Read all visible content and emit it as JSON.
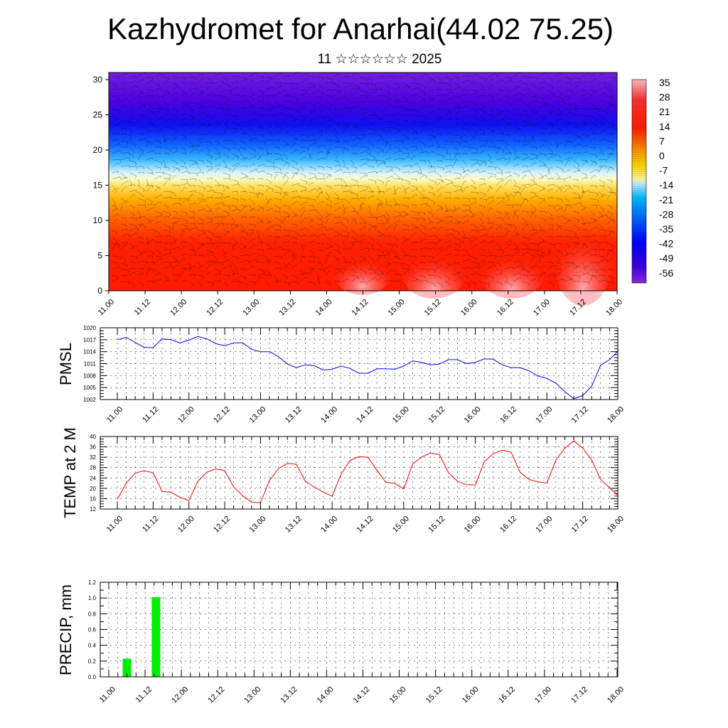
{
  "header": {
    "title": "Kazhydromet for Anarhai(44.02 75.25)",
    "subtitle": "11 ☆☆☆☆☆☆ 2025"
  },
  "colors": {
    "pmsl_line": "#0000ff",
    "temp_line": "#ff0000",
    "precip_bar": "#00ee00",
    "colorbar_stops": [
      "#ffd0e0",
      "#ff5050",
      "#ff0000",
      "#ff8c00",
      "#ffd700",
      "#fff8a0",
      "#c8f0ff",
      "#00bfff",
      "#0070ff",
      "#0000ff",
      "#4000e0",
      "#9020e0"
    ]
  },
  "chart_data": [
    {
      "type": "heatmap",
      "name": "temperature-height-section",
      "x_ticks": [
        "11.00",
        "11.12",
        "12.00",
        "12.12",
        "13.00",
        "13.12",
        "14.00",
        "14.12",
        "15.00",
        "15.12",
        "16.00",
        "16.12",
        "17.00",
        "17.12",
        "18.00"
      ],
      "y_ticks": [
        "0",
        "5",
        "10",
        "15",
        "20",
        "25",
        "30"
      ],
      "ylim": [
        0,
        31
      ],
      "colorbar_labels": [
        "35",
        "28",
        "21",
        "14",
        "7",
        "0",
        "-7",
        "-14",
        "-21",
        "-28",
        "-35",
        "-42",
        "-49",
        "-56"
      ],
      "wind_barbs": true
    },
    {
      "type": "line",
      "name": "pmsl",
      "ylabel": "PMSL",
      "ylim": [
        1002,
        1020
      ],
      "y_ticks": [
        "1020",
        "1017",
        "1014",
        "1011",
        "1008",
        "1005",
        "1002"
      ],
      "x_ticks": [
        "11.00",
        "11.12",
        "12.00",
        "12.12",
        "13.00",
        "13.12",
        "14.00",
        "14.12",
        "15.00",
        "15.12",
        "16.00",
        "16.12",
        "17.00",
        "17.12",
        "18.00"
      ],
      "grid": true,
      "values": [
        1017.0,
        1017.6,
        1016.3,
        1015.1,
        1015.0,
        1017.2,
        1017.0,
        1016.2,
        1016.9,
        1017.8,
        1017.2,
        1016.0,
        1015.5,
        1016.2,
        1016.2,
        1014.6,
        1014.0,
        1014.0,
        1012.8,
        1010.9,
        1010.0,
        1010.7,
        1010.5,
        1009.4,
        1009.6,
        1010.4,
        1009.8,
        1008.6,
        1008.6,
        1009.7,
        1009.7,
        1009.6,
        1010.4,
        1011.7,
        1011.3,
        1010.7,
        1010.9,
        1012.0,
        1012.0,
        1011.0,
        1011.3,
        1012.2,
        1012.1,
        1010.7,
        1010.0,
        1010.0,
        1009.2,
        1007.9,
        1007.3,
        1006.1,
        1004.0,
        1002.2,
        1003.0,
        1005.3,
        1010.6,
        1012.0,
        1014.3
      ]
    },
    {
      "type": "line",
      "name": "temp-2m",
      "ylabel": "TEMP at 2 M",
      "ylim": [
        12,
        40
      ],
      "y_ticks": [
        "40",
        "36",
        "32",
        "28",
        "24",
        "20",
        "16",
        "12"
      ],
      "x_ticks": [
        "11.00",
        "11.12",
        "12.00",
        "12.12",
        "13.00",
        "13.12",
        "14.00",
        "14.12",
        "15.00",
        "15.12",
        "16.00",
        "16.12",
        "17.00",
        "17.12",
        "18.00"
      ],
      "grid": true,
      "values": [
        15.7,
        22.0,
        25.9,
        26.8,
        26.0,
        18.8,
        18.5,
        16.5,
        15.3,
        22.8,
        26.2,
        27.5,
        26.8,
        20.5,
        17.2,
        14.7,
        14.5,
        23.0,
        27.6,
        29.6,
        29.3,
        22.7,
        20.5,
        18.5,
        16.9,
        25.5,
        30.8,
        32.2,
        32.0,
        27.0,
        22.3,
        21.9,
        19.8,
        29.4,
        32.1,
        33.6,
        33.0,
        26.0,
        22.7,
        21.4,
        21.3,
        30.3,
        33.4,
        34.7,
        33.9,
        26.2,
        23.4,
        22.5,
        22.0,
        31.0,
        35.5,
        38.3,
        35.5,
        31.0,
        23.4,
        20.2,
        17.0
      ]
    },
    {
      "type": "bar",
      "name": "precip",
      "ylabel": "PRECIP, mm",
      "ylim": [
        0,
        1.2
      ],
      "y_ticks": [
        "1.2",
        "1.0",
        "0.8",
        "0.6",
        "0.4",
        "0.2",
        "0.0"
      ],
      "x_ticks": [
        "11.00",
        "11.12",
        "12.00",
        "12.12",
        "13.00",
        "13.12",
        "14.00",
        "14.12",
        "15.00",
        "15.12",
        "16.00",
        "16.12",
        "17.00",
        "17.12",
        "18.00"
      ],
      "grid": true,
      "bars": [
        {
          "x_index": 0.5,
          "value": 0.23
        },
        {
          "x_index": 1.3,
          "value": 1.01
        }
      ]
    }
  ]
}
